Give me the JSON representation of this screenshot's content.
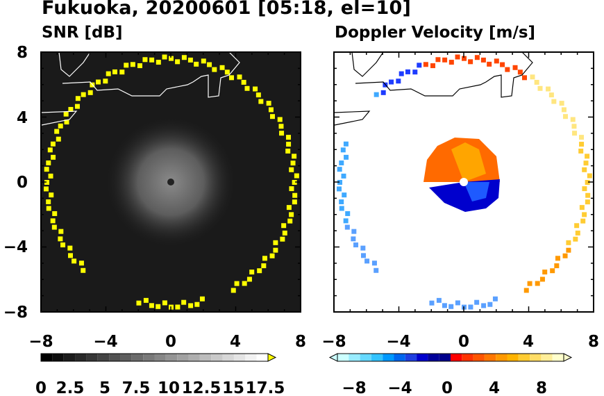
{
  "header": {
    "title": "Fukuoka, 20200601 [05:18, el=10]"
  },
  "chart_data": [
    {
      "type": "heatmap",
      "title": "SNR [dB]",
      "xlim": [
        -8,
        8
      ],
      "ylim": [
        -8,
        8
      ],
      "xticks": [
        "−8",
        "−4",
        "0",
        "4",
        "8"
      ],
      "yticks": [
        "8",
        "4",
        "0",
        "−4",
        "−8"
      ],
      "colorbar": {
        "range": [
          0,
          18.75
        ],
        "labels": [
          "0",
          "2.5",
          "5",
          "7.5",
          "10",
          "12.5",
          "15",
          "17.5"
        ],
        "extend": "max",
        "colors": [
          "#000000",
          "#ffffff",
          "#ffff00"
        ]
      },
      "features": {
        "ring_radius_km": 7.6,
        "ring_color": "#ffff00",
        "center_echo_radius_km": 2.4,
        "background": "#1a1a1a"
      }
    },
    {
      "type": "heatmap",
      "title": "Doppler Velocity [m/s]",
      "xlim": [
        -8,
        8
      ],
      "ylim": [
        -8,
        8
      ],
      "xticks": [
        "−8",
        "−4",
        "0",
        "4",
        "8"
      ],
      "yticks": [],
      "colorbar": {
        "range": [
          -10,
          10
        ],
        "labels": [
          "−8",
          "−4",
          "0",
          "4",
          "8"
        ],
        "extend": "both",
        "colors": [
          "#ccffff",
          "#00bfff",
          "#0000cd",
          "#ff0000",
          "#ff8c00",
          "#ffff66",
          "#ffffcc"
        ]
      },
      "features": {
        "center_echo": {
          "receding_side": "north-west",
          "approaching_side": "south-east"
        },
        "ring_north": "red-orange",
        "ring_east": "yellow",
        "ring_south_east": "orange",
        "ring_west": "light-blue",
        "ring_south": "blue"
      }
    }
  ]
}
